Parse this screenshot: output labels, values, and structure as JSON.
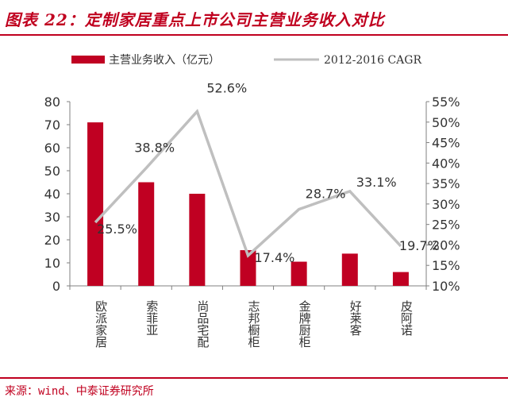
{
  "header": {
    "title": "图表 22：定制家居重点上市公司主营业务收入对比"
  },
  "footer": {
    "source": "来源：wind、中泰证券研究所"
  },
  "colors": {
    "accent": "#c0001f",
    "bar": "#c00022",
    "line": "#bfbfbf",
    "axis_text": "#333333"
  },
  "chart_data": {
    "type": "bar",
    "categories": [
      "欧派家居",
      "索菲亚",
      "尚品宅配",
      "志邦橱柜",
      "金牌厨柜",
      "好莱客",
      "皮阿诺"
    ],
    "series": [
      {
        "name": "主营业务收入（亿元）",
        "type": "bar",
        "axis": "left",
        "values": [
          71.0,
          45.0,
          40.0,
          15.5,
          10.5,
          14.0,
          6.0
        ]
      },
      {
        "name": "2012-2016 CAGR",
        "type": "line",
        "axis": "right",
        "values": [
          25.5,
          38.8,
          52.6,
          17.4,
          28.7,
          33.1,
          19.7
        ],
        "labels": [
          "25.5%",
          "38.8%",
          "52.6%",
          "17.4%",
          "28.7%",
          "33.1%",
          "19.7%"
        ]
      }
    ],
    "y_left": {
      "min": 0,
      "max": 80,
      "step": 10,
      "ticks": [
        "0",
        "10",
        "20",
        "30",
        "40",
        "50",
        "60",
        "70",
        "80"
      ]
    },
    "y_right": {
      "min": 10,
      "max": 55,
      "step": 5,
      "ticks": [
        "10%",
        "15%",
        "20%",
        "25%",
        "30%",
        "35%",
        "40%",
        "45%",
        "50%",
        "55%"
      ]
    },
    "legend_position": "top",
    "grid": false
  }
}
